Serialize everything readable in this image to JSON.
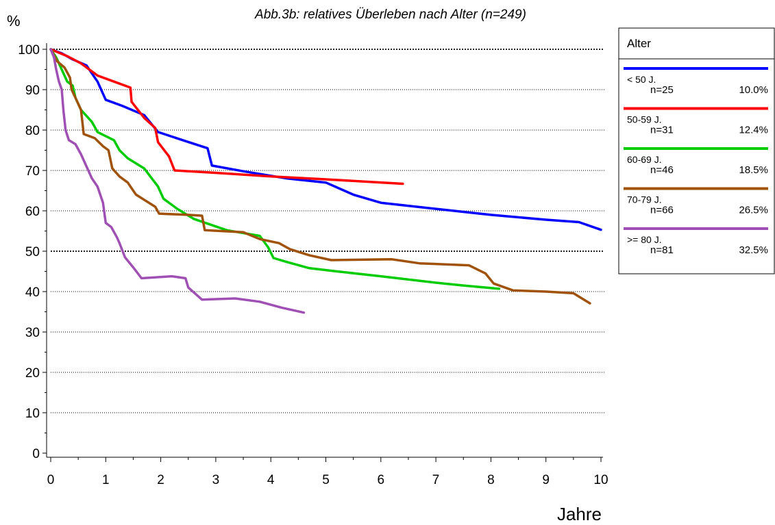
{
  "chart_data": {
    "type": "line",
    "title": "Abb.3b: relatives Überleben nach Alter (n=249)",
    "ylabel": "%",
    "xlabel": "Jahre",
    "xlim": [
      0,
      10
    ],
    "ylim": [
      0,
      100
    ],
    "x_ticks": [
      "0",
      "1",
      "2",
      "3",
      "4",
      "5",
      "6",
      "7",
      "8",
      "9",
      "10"
    ],
    "y_ticks": [
      "0",
      "10",
      "20",
      "30",
      "40",
      "50",
      "60",
      "70",
      "80",
      "90",
      "100"
    ],
    "grid": "horizontal dotted",
    "legend_position": "right",
    "legend_title": "Alter",
    "series": [
      {
        "name": "< 50 J.",
        "n_label": "n=25",
        "pct_label": "10.0%",
        "color": "#0000ff",
        "points": [
          [
            0,
            100
          ],
          [
            0.2,
            99
          ],
          [
            0.4,
            97.5
          ],
          [
            0.65,
            96
          ],
          [
            0.85,
            92
          ],
          [
            1,
            87.5
          ],
          [
            1.3,
            86
          ],
          [
            1.7,
            83.7
          ],
          [
            1.95,
            79.5
          ],
          [
            2.4,
            77.5
          ],
          [
            2.85,
            75.5
          ],
          [
            2.93,
            71.2
          ],
          [
            3.5,
            69.8
          ],
          [
            4.3,
            68
          ],
          [
            5,
            67
          ],
          [
            5.5,
            64
          ],
          [
            6,
            62
          ],
          [
            7,
            60.5
          ],
          [
            8,
            59
          ],
          [
            9,
            57.8
          ],
          [
            9.6,
            57.2
          ],
          [
            10,
            55.3
          ]
        ]
      },
      {
        "name": "50-59 J.",
        "n_label": "n=31",
        "pct_label": "12.4%",
        "color": "#ff0000",
        "points": [
          [
            0,
            100
          ],
          [
            0.3,
            98.3
          ],
          [
            0.55,
            96.5
          ],
          [
            0.85,
            93.5
          ],
          [
            1.15,
            92
          ],
          [
            1.45,
            90.5
          ],
          [
            1.47,
            87
          ],
          [
            1.7,
            83
          ],
          [
            1.9,
            80.5
          ],
          [
            1.95,
            77
          ],
          [
            2.15,
            73.5
          ],
          [
            2.25,
            70
          ],
          [
            3,
            69.4
          ],
          [
            4,
            68.5
          ],
          [
            5,
            67.8
          ],
          [
            6.4,
            66.7
          ]
        ]
      },
      {
        "name": "60-69 J.",
        "n_label": "n=46",
        "pct_label": "18.5%",
        "color": "#00cc00",
        "points": [
          [
            0,
            100
          ],
          [
            0.1,
            98
          ],
          [
            0.2,
            95
          ],
          [
            0.3,
            92
          ],
          [
            0.4,
            91
          ],
          [
            0.45,
            88
          ],
          [
            0.55,
            85
          ],
          [
            0.75,
            82
          ],
          [
            0.85,
            79.5
          ],
          [
            1.15,
            77.5
          ],
          [
            1.25,
            75
          ],
          [
            1.4,
            73
          ],
          [
            1.7,
            70.5
          ],
          [
            1.95,
            66
          ],
          [
            2.05,
            63
          ],
          [
            2.3,
            60.5
          ],
          [
            2.6,
            58
          ],
          [
            3.2,
            55.2
          ],
          [
            3.8,
            53.8
          ],
          [
            3.95,
            51
          ],
          [
            4.05,
            48.3
          ],
          [
            4.3,
            47.3
          ],
          [
            4.7,
            45.8
          ],
          [
            5.2,
            45
          ],
          [
            6,
            43.8
          ],
          [
            7,
            42.2
          ],
          [
            7.5,
            41.5
          ],
          [
            8.15,
            40.7
          ]
        ]
      },
      {
        "name": "70-79 J.",
        "n_label": "n=66",
        "pct_label": "26.5%",
        "color": "#a0520a",
        "points": [
          [
            0,
            100
          ],
          [
            0.12,
            97
          ],
          [
            0.25,
            95.5
          ],
          [
            0.35,
            93
          ],
          [
            0.38,
            90
          ],
          [
            0.45,
            88
          ],
          [
            0.55,
            85
          ],
          [
            0.6,
            79
          ],
          [
            0.8,
            78
          ],
          [
            0.95,
            76
          ],
          [
            1.05,
            75
          ],
          [
            1.12,
            70.5
          ],
          [
            1.25,
            68.5
          ],
          [
            1.4,
            67
          ],
          [
            1.5,
            65
          ],
          [
            1.55,
            64
          ],
          [
            1.9,
            61
          ],
          [
            1.97,
            59.3
          ],
          [
            2.5,
            59
          ],
          [
            2.75,
            58.8
          ],
          [
            2.8,
            55.2
          ],
          [
            3.5,
            54.7
          ],
          [
            3.8,
            53
          ],
          [
            4.15,
            52
          ],
          [
            4.35,
            50.5
          ],
          [
            4.7,
            49
          ],
          [
            5.1,
            47.8
          ],
          [
            6.2,
            48
          ],
          [
            6.7,
            47
          ],
          [
            7.6,
            46.5
          ],
          [
            7.9,
            44.5
          ],
          [
            8.05,
            42
          ],
          [
            8.4,
            40.3
          ],
          [
            9,
            40
          ],
          [
            9.5,
            39.6
          ],
          [
            9.8,
            37.1
          ]
        ]
      },
      {
        "name": ">= 80 J.",
        "n_label": "n=81",
        "pct_label": "32.5%",
        "color": "#a050b4",
        "points": [
          [
            0,
            100
          ],
          [
            0.06,
            98
          ],
          [
            0.1,
            95
          ],
          [
            0.15,
            92
          ],
          [
            0.2,
            90
          ],
          [
            0.23,
            85
          ],
          [
            0.27,
            80
          ],
          [
            0.33,
            77.5
          ],
          [
            0.45,
            76.5
          ],
          [
            0.55,
            74
          ],
          [
            0.65,
            71
          ],
          [
            0.75,
            68
          ],
          [
            0.85,
            66
          ],
          [
            0.95,
            62
          ],
          [
            1,
            57
          ],
          [
            1.1,
            56
          ],
          [
            1.2,
            53.5
          ],
          [
            1.25,
            52
          ],
          [
            1.35,
            48.5
          ],
          [
            1.5,
            46
          ],
          [
            1.65,
            43.3
          ],
          [
            2.2,
            43.8
          ],
          [
            2.45,
            43.3
          ],
          [
            2.5,
            41
          ],
          [
            2.75,
            38
          ],
          [
            3.35,
            38.3
          ],
          [
            3.8,
            37.5
          ],
          [
            4.2,
            36
          ],
          [
            4.6,
            34.8
          ]
        ]
      }
    ]
  }
}
